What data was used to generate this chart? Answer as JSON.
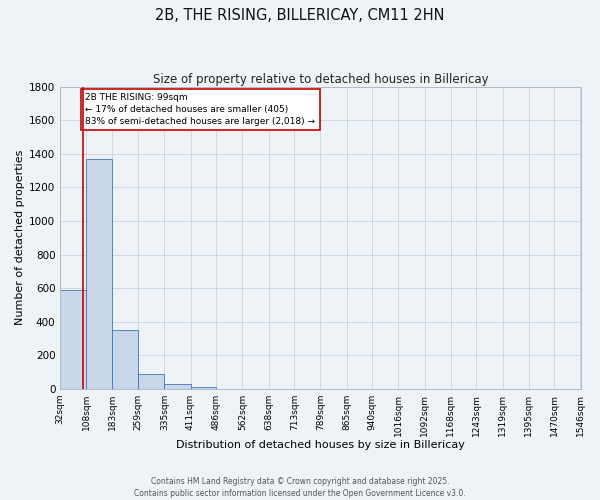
{
  "title": "2B, THE RISING, BILLERICAY, CM11 2HN",
  "subtitle": "Size of property relative to detached houses in Billericay",
  "xlabel": "Distribution of detached houses by size in Billericay",
  "ylabel": "Number of detached properties",
  "bin_labels": [
    "32sqm",
    "108sqm",
    "183sqm",
    "259sqm",
    "335sqm",
    "411sqm",
    "486sqm",
    "562sqm",
    "638sqm",
    "713sqm",
    "789sqm",
    "865sqm",
    "940sqm",
    "1016sqm",
    "1092sqm",
    "1168sqm",
    "1243sqm",
    "1319sqm",
    "1395sqm",
    "1470sqm",
    "1546sqm"
  ],
  "bar_values": [
    590,
    1370,
    350,
    88,
    28,
    12,
    0,
    0,
    0,
    0,
    0,
    0,
    0,
    0,
    0,
    0,
    0,
    0,
    0,
    0
  ],
  "bar_color": "#c8d8ea",
  "bar_edge_color": "#4472c4",
  "ylim": [
    0,
    1800
  ],
  "yticks": [
    0,
    200,
    400,
    600,
    800,
    1000,
    1200,
    1400,
    1600,
    1800
  ],
  "property_line_color": "#cc0000",
  "annotation_text": "2B THE RISING: 99sqm\n← 17% of detached houses are smaller (405)\n83% of semi-detached houses are larger (2,018) →",
  "annotation_box_color": "#ffffff",
  "annotation_box_edge": "#cc0000",
  "background_color": "#eef3f8",
  "plot_bg_color": "#eef3f8",
  "grid_color": "#c8d4de",
  "footer_line1": "Contains HM Land Registry data © Crown copyright and database right 2025.",
  "footer_line2": "Contains public sector information licensed under the Open Government Licence v3.0.",
  "bin_width": 75,
  "property_sqm": 99
}
